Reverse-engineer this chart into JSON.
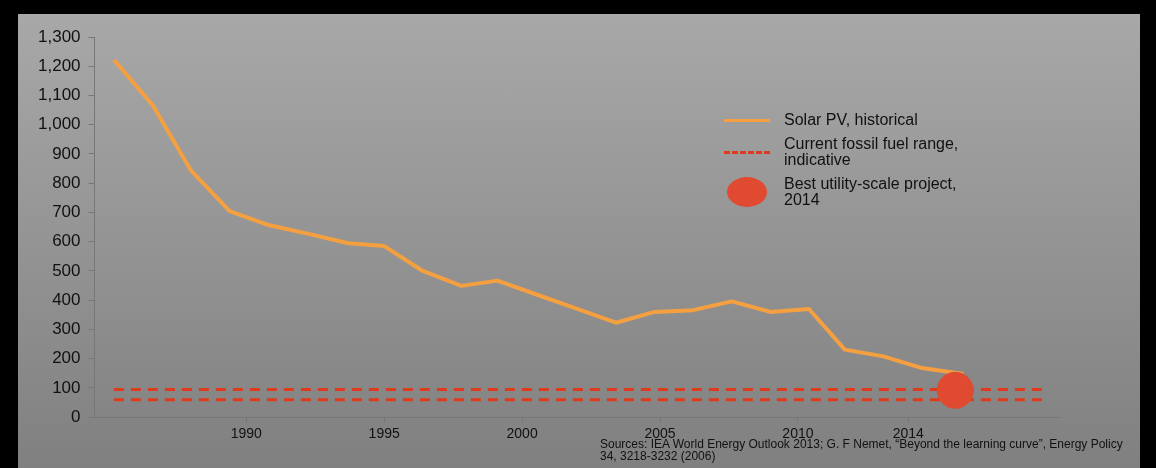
{
  "chart_data": {
    "type": "line",
    "x": [
      1985.2,
      1986.6,
      1988.0,
      1989.4,
      1990.8,
      1992.3,
      1993.7,
      1995.0,
      1996.4,
      1997.8,
      1999.1,
      2000.6,
      2002.0,
      2003.4,
      2004.8,
      2006.2,
      2007.6,
      2009.0,
      2010.4,
      2011.7,
      2013.1,
      2014.5,
      2016.0
    ],
    "series": [
      {
        "name": "Solar PV, historical",
        "color": "#f5a040",
        "values": [
          1222,
          1068,
          843,
          705,
          657,
          626,
          595,
          585,
          500,
          449,
          467,
          417,
          370,
          323,
          360,
          366,
          396,
          360,
          370,
          231,
          208,
          168,
          148
        ]
      },
      {
        "name": "Best utility-scale project, 2014",
        "type": "scatter",
        "marker": "circle",
        "color": "#e04a30",
        "x": [
          2015.7
        ],
        "values": [
          92
        ]
      }
    ],
    "ref_lines": [
      {
        "axis": "y",
        "value": 95,
        "label": "Current fossil fuel range, indicative",
        "color": "#e03a1c",
        "line_style": "dashed"
      },
      {
        "axis": "y",
        "value": 60,
        "label": null,
        "color": "#e03a1c",
        "line_style": "dashed"
      }
    ],
    "xlim": [
      1984.5,
      2019.5
    ],
    "xticks": [
      1990,
      1995,
      2000,
      2005,
      2010,
      2014
    ],
    "ylim": [
      0,
      1300
    ],
    "yticks": [
      0,
      100,
      200,
      300,
      400,
      500,
      600,
      700,
      800,
      900,
      {
        "value": 1000,
        "label": "1,000"
      },
      {
        "value": 1100,
        "label": "1,100"
      },
      {
        "value": 1200,
        "label": "1,200"
      },
      {
        "value": 1300,
        "label": "1,300"
      }
    ],
    "grid": false,
    "legend": "right",
    "marker": "none",
    "line_style": "solid",
    "annotations": [
      "Sources: IEA World Energy Outlook 2013; G. F Nemet, “Beyond the learning curve”, Energy Policy 34, 3218-3232 (2006)"
    ]
  }
}
